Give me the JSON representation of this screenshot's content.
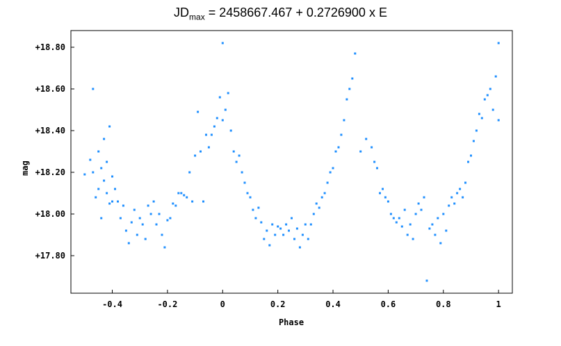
{
  "title": {
    "prefix": "JD",
    "subscript": "max",
    "suffix": " = 2458667.467 + 0.2726900 x E"
  },
  "chart_data": {
    "type": "scatter",
    "title": "JDmax = 2458667.467 + 0.2726900 x E",
    "xlabel": "Phase",
    "ylabel": "mag",
    "xlim": [
      -0.55,
      1.05
    ],
    "ylim": [
      18.88,
      17.62
    ],
    "y_inverted": true,
    "grid": false,
    "marker_color": "#1f8fff",
    "x_ticks": [
      {
        "value": -0.4,
        "label": "-0.4"
      },
      {
        "value": -0.2,
        "label": "-0.2"
      },
      {
        "value": 0,
        "label": "0"
      },
      {
        "value": 0.2,
        "label": "0.2"
      },
      {
        "value": 0.4,
        "label": "0.4"
      },
      {
        "value": 0.6,
        "label": "0.6"
      },
      {
        "value": 0.8,
        "label": "0.8"
      },
      {
        "value": 1,
        "label": "1"
      }
    ],
    "y_ticks": [
      {
        "value": 17.8,
        "label": "+17.80"
      },
      {
        "value": 18.0,
        "label": "+18.00"
      },
      {
        "value": 18.2,
        "label": "+18.20"
      },
      {
        "value": 18.4,
        "label": "+18.40"
      },
      {
        "value": 18.6,
        "label": "+18.60"
      },
      {
        "value": 18.8,
        "label": "+18.80"
      }
    ],
    "series": [
      {
        "points": [
          [
            -0.5,
            18.19
          ],
          [
            -0.48,
            18.26
          ],
          [
            -0.47,
            18.6
          ],
          [
            -0.47,
            18.2
          ],
          [
            -0.46,
            18.08
          ],
          [
            -0.45,
            18.12
          ],
          [
            -0.45,
            18.3
          ],
          [
            -0.44,
            18.22
          ],
          [
            -0.44,
            17.98
          ],
          [
            -0.43,
            18.16
          ],
          [
            -0.43,
            18.36
          ],
          [
            -0.42,
            18.1
          ],
          [
            -0.42,
            18.25
          ],
          [
            -0.41,
            18.42
          ],
          [
            -0.41,
            18.05
          ],
          [
            -0.4,
            18.18
          ],
          [
            -0.4,
            18.06
          ],
          [
            -0.39,
            18.12
          ],
          [
            -0.38,
            18.06
          ],
          [
            -0.37,
            17.98
          ],
          [
            -0.36,
            18.04
          ],
          [
            -0.35,
            17.92
          ],
          [
            -0.34,
            17.86
          ],
          [
            -0.33,
            17.96
          ],
          [
            -0.32,
            18.02
          ],
          [
            -0.31,
            17.9
          ],
          [
            -0.3,
            17.98
          ],
          [
            -0.29,
            17.95
          ],
          [
            -0.28,
            17.88
          ],
          [
            -0.27,
            18.04
          ],
          [
            -0.26,
            18.0
          ],
          [
            -0.25,
            18.06
          ],
          [
            -0.24,
            17.95
          ],
          [
            -0.23,
            18.0
          ],
          [
            -0.22,
            17.9
          ],
          [
            -0.21,
            17.84
          ],
          [
            -0.2,
            17.97
          ],
          [
            -0.19,
            17.98
          ],
          [
            -0.18,
            18.05
          ],
          [
            -0.17,
            18.04
          ],
          [
            -0.16,
            18.1
          ],
          [
            -0.15,
            18.1
          ],
          [
            -0.14,
            18.09
          ],
          [
            -0.13,
            18.08
          ],
          [
            -0.12,
            18.2
          ],
          [
            -0.11,
            18.06
          ],
          [
            -0.1,
            18.28
          ],
          [
            -0.09,
            18.49
          ],
          [
            -0.08,
            18.3
          ],
          [
            -0.07,
            18.06
          ],
          [
            -0.06,
            18.38
          ],
          [
            -0.05,
            18.32
          ],
          [
            -0.04,
            18.38
          ],
          [
            -0.03,
            18.42
          ],
          [
            -0.02,
            18.46
          ],
          [
            -0.01,
            18.56
          ],
          [
            0.0,
            18.45
          ],
          [
            0.0,
            18.82
          ],
          [
            0.01,
            18.5
          ],
          [
            0.02,
            18.58
          ],
          [
            0.03,
            18.4
          ],
          [
            0.04,
            18.3
          ],
          [
            0.05,
            18.25
          ],
          [
            0.06,
            18.28
          ],
          [
            0.07,
            18.2
          ],
          [
            0.08,
            18.15
          ],
          [
            0.09,
            18.1
          ],
          [
            0.1,
            18.08
          ],
          [
            0.11,
            18.02
          ],
          [
            0.12,
            17.98
          ],
          [
            0.13,
            18.03
          ],
          [
            0.14,
            17.96
          ],
          [
            0.15,
            17.88
          ],
          [
            0.16,
            17.92
          ],
          [
            0.17,
            17.85
          ],
          [
            0.18,
            17.95
          ],
          [
            0.19,
            17.9
          ],
          [
            0.2,
            17.94
          ],
          [
            0.21,
            17.93
          ],
          [
            0.22,
            17.9
          ],
          [
            0.23,
            17.95
          ],
          [
            0.24,
            17.92
          ],
          [
            0.25,
            17.98
          ],
          [
            0.26,
            17.88
          ],
          [
            0.27,
            17.93
          ],
          [
            0.28,
            17.84
          ],
          [
            0.29,
            17.9
          ],
          [
            0.3,
            17.95
          ],
          [
            0.31,
            17.88
          ],
          [
            0.32,
            17.95
          ],
          [
            0.33,
            18.0
          ],
          [
            0.34,
            18.05
          ],
          [
            0.35,
            18.03
          ],
          [
            0.36,
            18.08
          ],
          [
            0.37,
            18.1
          ],
          [
            0.38,
            18.15
          ],
          [
            0.39,
            18.2
          ],
          [
            0.4,
            18.22
          ],
          [
            0.41,
            18.3
          ],
          [
            0.42,
            18.32
          ],
          [
            0.43,
            18.38
          ],
          [
            0.44,
            18.45
          ],
          [
            0.45,
            18.55
          ],
          [
            0.46,
            18.6
          ],
          [
            0.47,
            18.65
          ],
          [
            0.48,
            18.77
          ],
          [
            0.5,
            18.3
          ],
          [
            0.52,
            18.36
          ],
          [
            0.54,
            18.32
          ],
          [
            0.55,
            18.25
          ],
          [
            0.56,
            18.22
          ],
          [
            0.57,
            18.1
          ],
          [
            0.58,
            18.12
          ],
          [
            0.59,
            18.08
          ],
          [
            0.6,
            18.06
          ],
          [
            0.61,
            18.0
          ],
          [
            0.62,
            17.98
          ],
          [
            0.63,
            17.96
          ],
          [
            0.64,
            17.98
          ],
          [
            0.65,
            17.94
          ],
          [
            0.66,
            18.02
          ],
          [
            0.67,
            17.9
          ],
          [
            0.68,
            17.95
          ],
          [
            0.69,
            17.88
          ],
          [
            0.7,
            18.0
          ],
          [
            0.71,
            18.05
          ],
          [
            0.72,
            18.02
          ],
          [
            0.73,
            18.08
          ],
          [
            0.74,
            17.68
          ],
          [
            0.75,
            17.93
          ],
          [
            0.76,
            17.95
          ],
          [
            0.77,
            17.9
          ],
          [
            0.78,
            17.98
          ],
          [
            0.79,
            17.86
          ],
          [
            0.8,
            18.0
          ],
          [
            0.81,
            17.92
          ],
          [
            0.82,
            18.04
          ],
          [
            0.83,
            18.08
          ],
          [
            0.84,
            18.05
          ],
          [
            0.85,
            18.1
          ],
          [
            0.86,
            18.12
          ],
          [
            0.87,
            18.08
          ],
          [
            0.88,
            18.15
          ],
          [
            0.89,
            18.25
          ],
          [
            0.9,
            18.28
          ],
          [
            0.91,
            18.35
          ],
          [
            0.92,
            18.4
          ],
          [
            0.93,
            18.48
          ],
          [
            0.94,
            18.46
          ],
          [
            0.95,
            18.55
          ],
          [
            0.96,
            18.57
          ],
          [
            0.97,
            18.6
          ],
          [
            0.98,
            18.5
          ],
          [
            0.99,
            18.66
          ],
          [
            1.0,
            18.45
          ],
          [
            1.0,
            18.82
          ]
        ]
      }
    ]
  }
}
